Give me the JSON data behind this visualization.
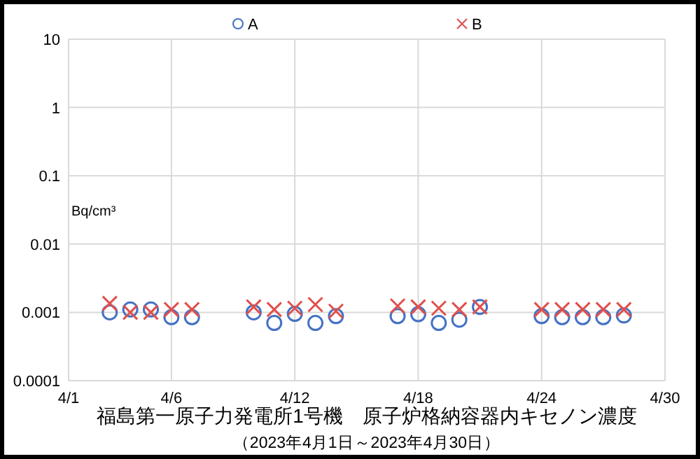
{
  "chart_data": {
    "type": "scatter",
    "title": "福島第一原子力発電所1号機　原子炉格納容器内キセノン濃度",
    "subtitle": "（2023年4月1日～2023年4月30日）",
    "ylabel": "Bq/cm³",
    "x": [
      "2023-04-03",
      "2023-04-04",
      "2023-04-05",
      "2023-04-06",
      "2023-04-07",
      "2023-04-10",
      "2023-04-11",
      "2023-04-12",
      "2023-04-13",
      "2023-04-14",
      "2023-04-17",
      "2023-04-18",
      "2023-04-19",
      "2023-04-20",
      "2023-04-21",
      "2023-04-24",
      "2023-04-25",
      "2023-04-26",
      "2023-04-27",
      "2023-04-28"
    ],
    "series": [
      {
        "name": "A",
        "color": "#4472c4",
        "marker": "circle",
        "values": [
          0.001,
          0.0011,
          0.0011,
          0.00085,
          0.00085,
          0.001,
          0.0007,
          0.00095,
          0.0007,
          0.00088,
          0.00088,
          0.00094,
          0.0007,
          0.00078,
          0.0012,
          0.00088,
          0.00085,
          0.00085,
          0.00085,
          0.0009
        ]
      },
      {
        "name": "B",
        "color": "#e0504d",
        "marker": "cross",
        "values": [
          0.00135,
          0.001,
          0.001,
          0.0011,
          0.0011,
          0.0012,
          0.0011,
          0.00115,
          0.0013,
          0.00104,
          0.00124,
          0.0012,
          0.00115,
          0.0011,
          0.0012,
          0.0011,
          0.0011,
          0.0011,
          0.0011,
          0.0011
        ]
      }
    ],
    "xlim": [
      "2023-04-01",
      "2023-04-30"
    ],
    "xticks": [
      {
        "value": "2023-04-01",
        "label": "4/1"
      },
      {
        "value": "2023-04-06",
        "label": "4/6"
      },
      {
        "value": "2023-04-12",
        "label": "4/12"
      },
      {
        "value": "2023-04-18",
        "label": "4/18"
      },
      {
        "value": "2023-04-24",
        "label": "4/24"
      },
      {
        "value": "2023-04-30",
        "label": "4/30"
      }
    ],
    "log": true,
    "ylim": [
      0.0001,
      10
    ],
    "yticks": [
      0.0001,
      0.001,
      0.01,
      0.1,
      1,
      10
    ],
    "grid": true,
    "legend": "top"
  }
}
